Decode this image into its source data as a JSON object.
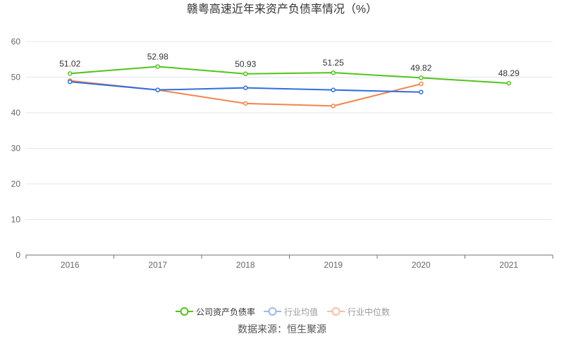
{
  "chart_data": {
    "type": "line",
    "title": "赣粤高速近年来资产负债率情况（%）",
    "categories": [
      "2016",
      "2017",
      "2018",
      "2019",
      "2020",
      "2021"
    ],
    "ylim": [
      0,
      60
    ],
    "yticks": [
      "0",
      "10",
      "20",
      "30",
      "40",
      "50",
      "60"
    ],
    "series": [
      {
        "name": "公司资产负债率",
        "color": "#52c41a",
        "values": [
          51.02,
          52.98,
          50.93,
          51.25,
          49.82,
          48.29
        ],
        "labels": [
          "51.02",
          "52.98",
          "50.93",
          "51.25",
          "49.82",
          "48.29"
        ]
      },
      {
        "name": "行业均值",
        "color": "#2f6fde",
        "values": [
          48.7,
          46.4,
          47.0,
          46.4,
          45.8,
          null
        ]
      },
      {
        "name": "行业中位数",
        "color": "#f5844c",
        "values": [
          49.0,
          46.4,
          42.6,
          41.9,
          48.1,
          null
        ]
      }
    ],
    "legend_position": "bottom",
    "source": "数据来源：恒生聚源"
  }
}
